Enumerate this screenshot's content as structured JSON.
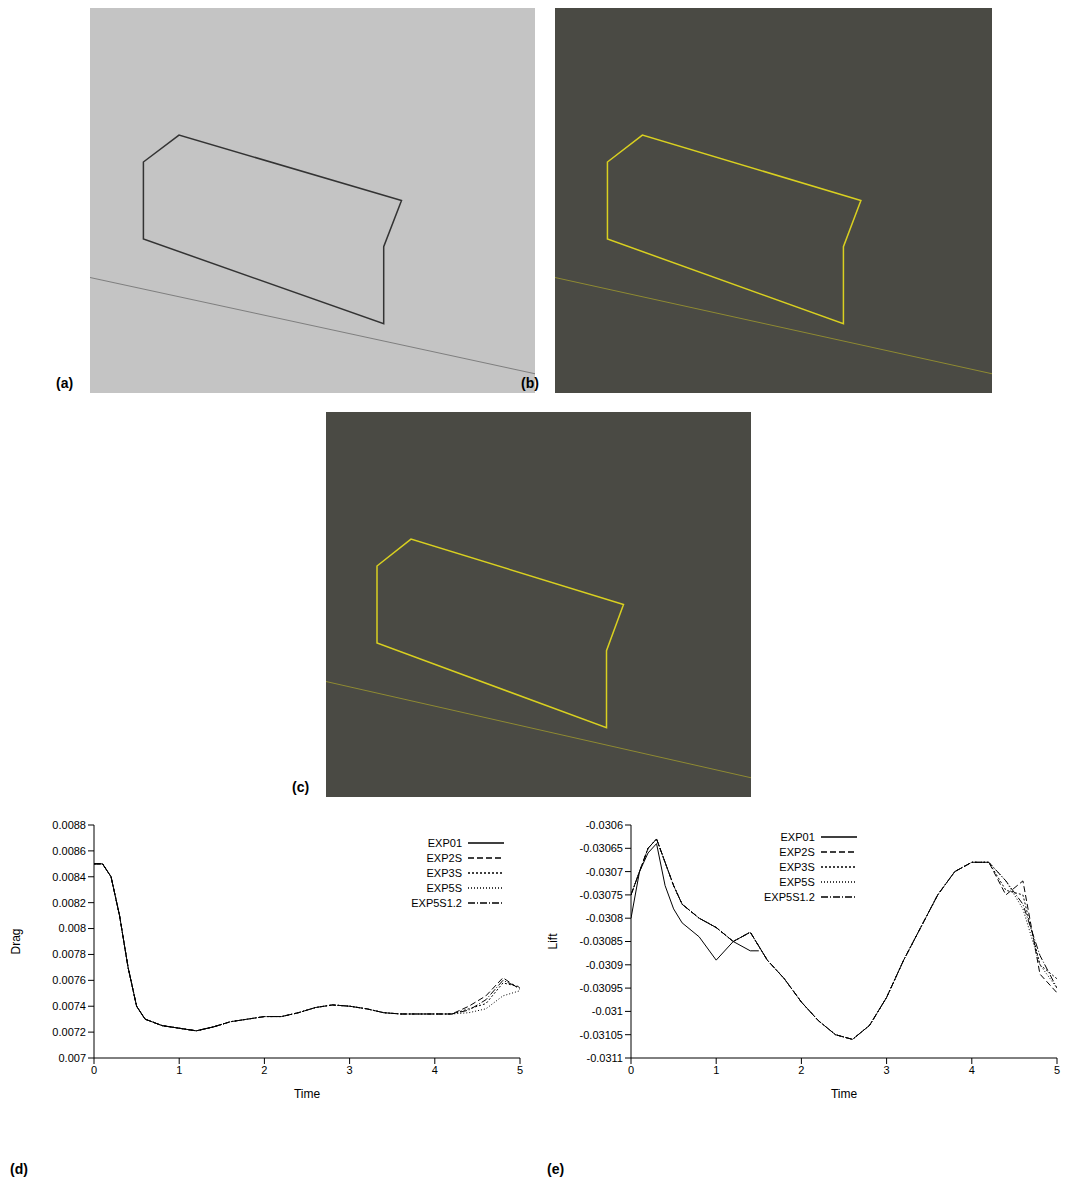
{
  "chart_data": [
    {
      "type": "image",
      "label": "(a)"
    },
    {
      "type": "image",
      "label": "(b)"
    },
    {
      "type": "image",
      "label": "(c)"
    },
    {
      "type": "line",
      "label": "(d)",
      "x_label": "Time",
      "y_label": "Drag",
      "x": [
        0,
        0.1,
        0.2,
        0.3,
        0.4,
        0.5,
        0.6,
        0.8,
        1.0,
        1.2,
        1.4,
        1.5,
        1.6,
        1.8,
        2.0,
        2.2,
        2.4,
        2.6,
        2.8,
        3.0,
        3.2,
        3.4,
        3.6,
        3.8,
        4.0,
        4.2,
        4.4,
        4.6,
        4.8,
        5.0
      ],
      "xlim": [
        0,
        5
      ],
      "xticks": [
        0,
        1,
        2,
        3,
        4,
        5
      ],
      "ylim": [
        0.007,
        0.0088
      ],
      "yticks": [
        0.007,
        0.0072,
        0.0074,
        0.0076,
        0.0078,
        0.008,
        0.0082,
        0.0084,
        0.0086,
        0.0088
      ],
      "legend": "upper right",
      "series": [
        {
          "name": "EXP01",
          "color": "#000000",
          "line_style": "solid",
          "values": [
            0.0085,
            0.0085,
            0.0084,
            0.0081,
            0.0077,
            0.0074,
            0.0073,
            0.00725,
            0.00723,
            0.00721,
            0.00724,
            0.00726,
            null,
            null,
            null,
            null,
            null,
            null,
            null,
            null,
            null,
            null,
            null,
            null,
            null,
            null,
            null,
            null,
            null,
            null
          ]
        },
        {
          "name": "EXP2S",
          "color": "#000000",
          "line_style": "dashed",
          "values": [
            0.0085,
            0.0085,
            0.0084,
            0.0081,
            0.0077,
            0.0074,
            0.0073,
            0.00725,
            0.00723,
            0.00721,
            0.00724,
            0.00726,
            0.00728,
            0.0073,
            0.00732,
            0.00732,
            0.00735,
            0.00739,
            0.00741,
            0.0074,
            0.00738,
            0.00735,
            0.00734,
            0.00734,
            0.00734,
            0.00734,
            0.0074,
            0.00748,
            0.00762,
            0.00753
          ]
        },
        {
          "name": "EXP3S",
          "color": "#000000",
          "line_style": "dotted",
          "values": [
            0.0085,
            0.0085,
            0.0084,
            0.0081,
            0.0077,
            0.0074,
            0.0073,
            0.00725,
            0.00723,
            0.00721,
            0.00724,
            0.00726,
            0.00728,
            0.0073,
            0.00732,
            0.00732,
            0.00735,
            0.00739,
            0.00741,
            0.0074,
            0.00738,
            0.00735,
            0.00734,
            0.00734,
            0.00734,
            0.00734,
            0.00738,
            0.00742,
            0.00758,
            0.00755
          ]
        },
        {
          "name": "EXP5S",
          "color": "#000000",
          "line_style": "fine-dotted",
          "values": [
            0.0085,
            0.0085,
            0.0084,
            0.0081,
            0.0077,
            0.0074,
            0.0073,
            0.00725,
            0.00723,
            0.00721,
            0.00724,
            0.00726,
            0.00728,
            0.0073,
            0.00732,
            0.00732,
            0.00735,
            0.00739,
            0.00741,
            0.0074,
            0.00738,
            0.00735,
            0.00734,
            0.00734,
            0.00734,
            0.00734,
            0.00735,
            0.00738,
            0.00748,
            0.00752
          ]
        },
        {
          "name": "EXP5S1.2",
          "color": "#000000",
          "line_style": "dashdot",
          "values": [
            0.0085,
            0.0085,
            0.0084,
            0.0081,
            0.0077,
            0.0074,
            0.0073,
            0.00725,
            0.00723,
            0.00721,
            0.00724,
            0.00726,
            0.00728,
            0.0073,
            0.00732,
            0.00732,
            0.00735,
            0.00739,
            0.00741,
            0.0074,
            0.00738,
            0.00735,
            0.00734,
            0.00734,
            0.00734,
            0.00734,
            0.00737,
            0.00745,
            0.0076,
            0.00754
          ]
        }
      ]
    },
    {
      "type": "line",
      "label": "(e)",
      "x_label": "Time",
      "y_label": "Lift",
      "x": [
        0,
        0.1,
        0.2,
        0.3,
        0.4,
        0.5,
        0.6,
        0.8,
        1.0,
        1.2,
        1.4,
        1.5,
        1.6,
        1.8,
        2.0,
        2.2,
        2.4,
        2.6,
        2.8,
        3.0,
        3.2,
        3.4,
        3.6,
        3.8,
        4.0,
        4.2,
        4.4,
        4.6,
        4.8,
        5.0
      ],
      "xlim": [
        0,
        5
      ],
      "xticks": [
        0,
        1,
        2,
        3,
        4,
        5
      ],
      "ylim": [
        -0.0311,
        -0.0306
      ],
      "yticks": [
        -0.0311,
        -0.03105,
        -0.031,
        -0.03095,
        -0.0309,
        -0.03085,
        -0.0308,
        -0.03075,
        -0.0307,
        -0.03065,
        -0.0306
      ],
      "legend": "upper center",
      "series": [
        {
          "name": "EXP01",
          "color": "#000000",
          "line_style": "solid",
          "values": [
            -0.0308,
            -0.0307,
            -0.03066,
            -0.03064,
            -0.03073,
            -0.03078,
            -0.03081,
            -0.03084,
            -0.03089,
            -0.03085,
            -0.03087,
            -0.03087,
            null,
            null,
            null,
            null,
            null,
            null,
            null,
            null,
            null,
            null,
            null,
            null,
            null,
            null,
            null,
            null,
            null,
            null
          ]
        },
        {
          "name": "EXP2S",
          "color": "#000000",
          "line_style": "dashed",
          "values": [
            -0.03075,
            -0.0307,
            -0.03065,
            -0.03063,
            -0.03068,
            -0.03073,
            -0.03077,
            -0.0308,
            -0.03082,
            -0.03085,
            -0.03083,
            -0.03086,
            -0.03089,
            -0.03093,
            -0.03098,
            -0.03102,
            -0.03105,
            -0.03106,
            -0.03103,
            -0.03097,
            -0.03089,
            -0.03082,
            -0.03075,
            -0.0307,
            -0.03068,
            -0.03068,
            -0.03075,
            -0.03072,
            -0.03092,
            -0.03096
          ]
        },
        {
          "name": "EXP3S",
          "color": "#000000",
          "line_style": "dotted",
          "values": [
            -0.03075,
            -0.0307,
            -0.03065,
            -0.03063,
            -0.03068,
            -0.03073,
            -0.03077,
            -0.0308,
            -0.03082,
            -0.03085,
            -0.03083,
            -0.03086,
            -0.03089,
            -0.03093,
            -0.03098,
            -0.03102,
            -0.03105,
            -0.03106,
            -0.03103,
            -0.03097,
            -0.03089,
            -0.03082,
            -0.03075,
            -0.0307,
            -0.03068,
            -0.03068,
            -0.03074,
            -0.03075,
            -0.0309,
            -0.03093
          ]
        },
        {
          "name": "EXP5S",
          "color": "#000000",
          "line_style": "fine-dotted",
          "values": [
            -0.03075,
            -0.0307,
            -0.03065,
            -0.03063,
            -0.03068,
            -0.03073,
            -0.03077,
            -0.0308,
            -0.03082,
            -0.03085,
            -0.03083,
            -0.03086,
            -0.03089,
            -0.03093,
            -0.03098,
            -0.03102,
            -0.03105,
            -0.03106,
            -0.03103,
            -0.03097,
            -0.03089,
            -0.03082,
            -0.03075,
            -0.0307,
            -0.03068,
            -0.03068,
            -0.03072,
            -0.03078,
            -0.0309,
            -0.03095
          ]
        },
        {
          "name": "EXP5S1.2",
          "color": "#000000",
          "line_style": "dashdot",
          "values": [
            -0.03075,
            -0.0307,
            -0.03065,
            -0.03063,
            -0.03068,
            -0.03073,
            -0.03077,
            -0.0308,
            -0.03082,
            -0.03085,
            -0.03083,
            -0.03086,
            -0.03089,
            -0.03093,
            -0.03098,
            -0.03102,
            -0.03105,
            -0.03106,
            -0.03103,
            -0.03097,
            -0.03089,
            -0.03082,
            -0.03075,
            -0.0307,
            -0.03068,
            -0.03068,
            -0.03072,
            -0.03077,
            -0.03088,
            -0.03095
          ]
        }
      ]
    }
  ]
}
